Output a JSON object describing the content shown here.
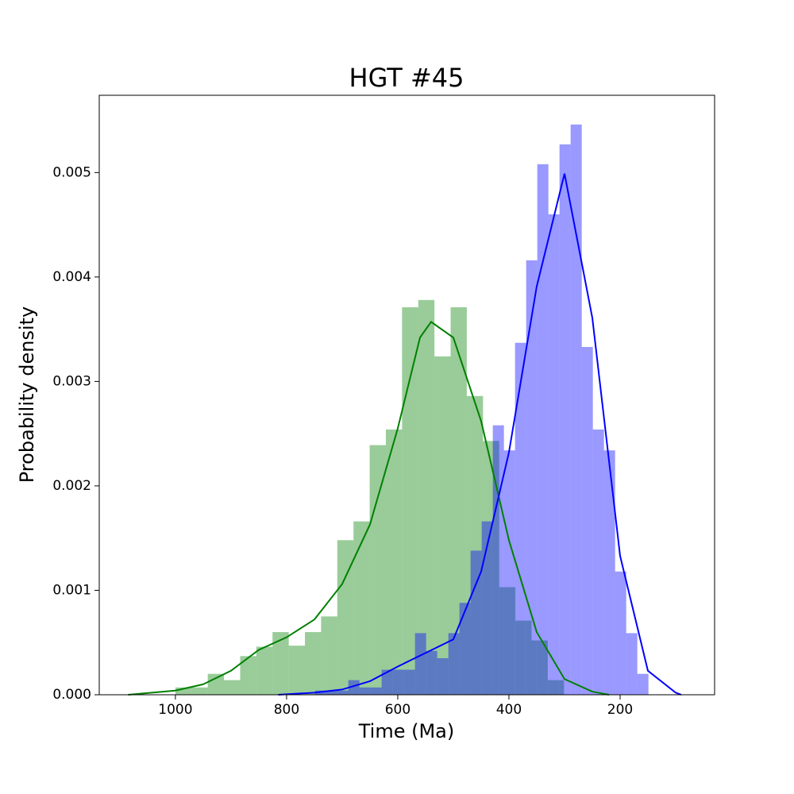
{
  "chart_data": {
    "type": "histogram",
    "title": "HGT #45",
    "xlabel": "Time (Ma)",
    "ylabel": "Probability density",
    "xlim": [
      1137,
      30
    ],
    "ylim": [
      0,
      0.00574
    ],
    "xticks": [
      1000,
      800,
      600,
      400,
      200
    ],
    "yticks": [
      {
        "value": 0,
        "label": "0.000"
      },
      0.001,
      0.002,
      0.003,
      0.004,
      0.005
    ],
    "alpha": 0.4,
    "series": [
      {
        "color": "#008000",
        "bins": [
          1000,
          970.9,
          941.8,
          912.6,
          883.5,
          854.4,
          825.3,
          796.1,
          767,
          737.9,
          708.8,
          679.6,
          650.5,
          621.4,
          592.3,
          563.1,
          534,
          504.9,
          475.8,
          446.6,
          417.5,
          388.4,
          359.3,
          330.1,
          301
        ],
        "values": [
          7e-05,
          7e-05,
          0.0002,
          0.00014,
          0.00037,
          0.00046,
          0.0006,
          0.00047,
          0.0006,
          0.00075,
          0.00148,
          0.00166,
          0.00239,
          0.00254,
          0.00371,
          0.00378,
          0.00324,
          0.00371,
          0.00286,
          0.00243,
          0.00103,
          0.00071,
          0.00052,
          0.00014
        ],
        "kde": {
          "x": [
            1085,
            1000,
            950,
            900,
            850,
            800,
            750,
            700,
            650,
            600,
            560,
            540,
            500,
            450,
            400,
            350,
            300,
            250,
            220
          ],
          "values": [
            0,
            4e-05,
            0.0001,
            0.00023,
            0.00043,
            0.00055,
            0.00072,
            0.00106,
            0.00163,
            0.00255,
            0.00342,
            0.00357,
            0.00342,
            0.00262,
            0.00148,
            0.0006,
            0.00015,
            3e-05,
            0
          ]
        }
      },
      {
        "color": "#0000ff",
        "bins": [
          749,
          729,
          709,
          689,
          669,
          649,
          629,
          609,
          589,
          569,
          549,
          529,
          509,
          489,
          469,
          449,
          429,
          409,
          389,
          369,
          349,
          329,
          309,
          289,
          269,
          249,
          229,
          209,
          189,
          169,
          149
        ],
        "values": [
          4e-05,
          4e-05,
          4e-05,
          0.00014,
          7e-05,
          7e-05,
          0.00024,
          0.00024,
          0.00024,
          0.00059,
          0.00042,
          0.00035,
          0.00059,
          0.00088,
          0.00138,
          0.00166,
          0.00258,
          0.00234,
          0.00337,
          0.00416,
          0.00508,
          0.0046,
          0.00527,
          0.00546,
          0.00333,
          0.00254,
          0.00234,
          0.00118,
          0.00059,
          0.0002
        ],
        "kde": {
          "x": [
            815,
            750,
            700,
            650,
            600,
            550,
            500,
            450,
            400,
            350,
            300,
            250,
            200,
            150,
            100,
            90
          ],
          "values": [
            0,
            2e-05,
            5e-05,
            0.00013,
            0.00027,
            0.0004,
            0.00053,
            0.00118,
            0.00232,
            0.00391,
            0.00499,
            0.00361,
            0.00133,
            0.00023,
            2e-05,
            0
          ]
        }
      }
    ]
  }
}
